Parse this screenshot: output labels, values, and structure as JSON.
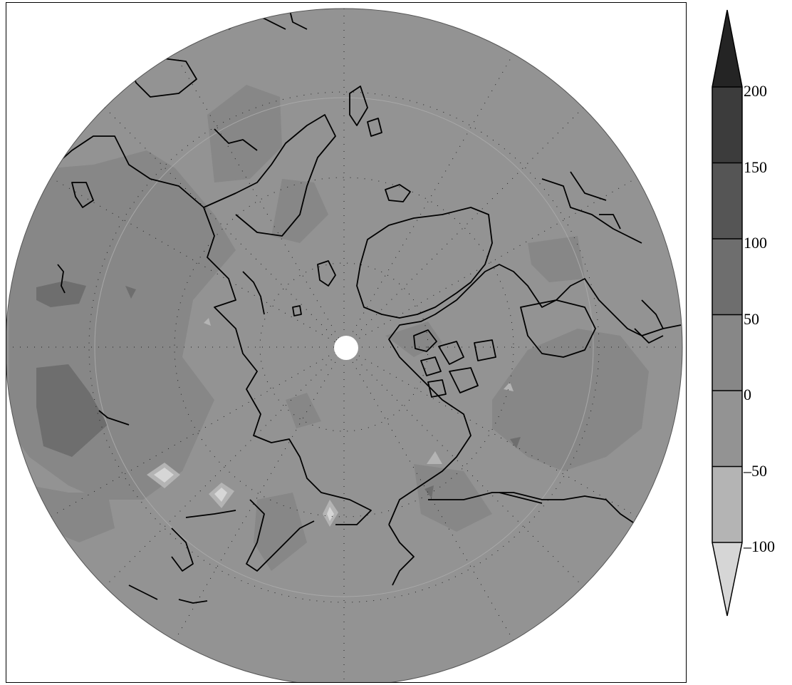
{
  "colorbar": {
    "ticks": [
      "200",
      "150",
      "100",
      "50",
      "0",
      "–50",
      "–100"
    ],
    "bins": [
      {
        "range": ">200",
        "color": "#242424"
      },
      {
        "range": "150–200",
        "color": "#3c3c3c"
      },
      {
        "range": "100–150",
        "color": "#555555"
      },
      {
        "range": "50–100",
        "color": "#6e6e6e"
      },
      {
        "range": "0–50",
        "color": "#878787"
      },
      {
        "range": "-50–0",
        "color": "#939393"
      },
      {
        "range": "-100–-50",
        "color": "#b4b4b4"
      },
      {
        "range": "<-100",
        "color": "#d6d6d6"
      }
    ]
  },
  "map": {
    "projection": "north polar stereographic",
    "background_color": "#939393",
    "coastline_color": "#000000",
    "graticule": "dotted",
    "pole_hole_color": "#ffffff"
  }
}
